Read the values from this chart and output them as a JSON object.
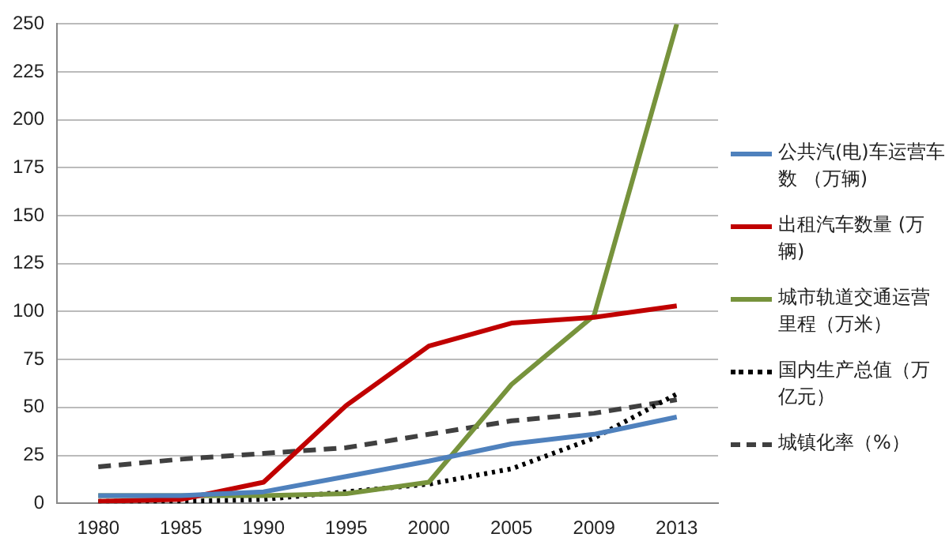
{
  "chart_data": {
    "type": "line",
    "categories": [
      "1980",
      "1985",
      "1990",
      "1995",
      "2000",
      "2005",
      "2009",
      "2013"
    ],
    "series": [
      {
        "name": "公共汽(电)车运营车数 （万辆)",
        "color": "#4f81bd",
        "values": [
          4,
          4,
          6,
          14,
          22,
          31,
          36,
          45
        ]
      },
      {
        "name": "出租汽车数量 (万辆)",
        "color": "#c00000",
        "values": [
          1,
          2,
          11,
          51,
          82,
          94,
          97,
          103
        ]
      },
      {
        "name": "城市轨道交通运营里程（万米）",
        "color": "#77933c",
        "values": [
          4,
          4,
          4,
          5,
          11,
          62,
          98,
          250
        ]
      },
      {
        "name": "国内生产总值（万亿元）",
        "color": "#000000",
        "line_style": "dotted",
        "values": [
          1,
          1,
          2,
          6,
          10,
          18,
          34,
          57
        ]
      },
      {
        "name": "城镇化率（%）",
        "color": "#404040",
        "line_style": "dashed",
        "values": [
          19,
          23,
          26,
          29,
          36,
          43,
          47,
          54
        ]
      }
    ],
    "ylim": [
      0,
      250
    ],
    "yticks": [
      0,
      25,
      50,
      75,
      100,
      125,
      150,
      175,
      200,
      225,
      250
    ],
    "grid": "y",
    "legend": "right",
    "marker": "none"
  }
}
